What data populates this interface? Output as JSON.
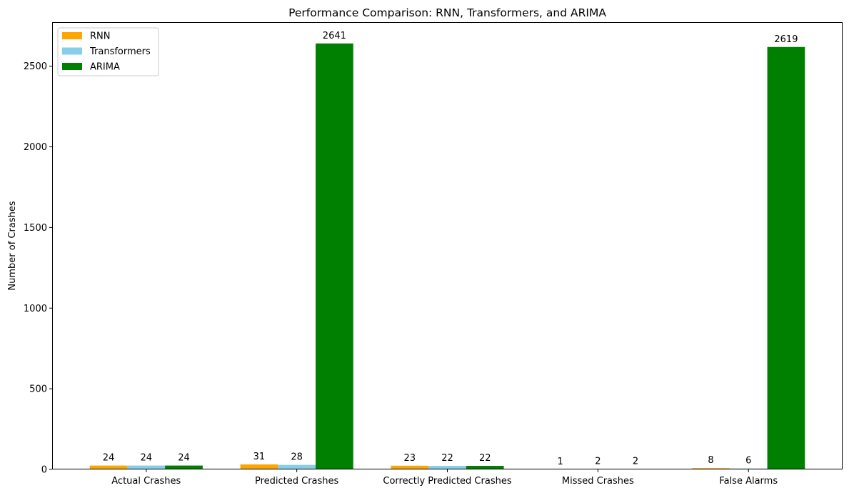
{
  "chart_data": {
    "type": "bar",
    "title": "Performance Comparison: RNN, Transformers, and ARIMA",
    "xlabel": "",
    "ylabel": "Number of Crashes",
    "categories": [
      "Actual Crashes",
      "Predicted Crashes",
      "Correctly Predicted Crashes",
      "Missed Crashes",
      "False Alarms"
    ],
    "series": [
      {
        "name": "RNN",
        "color": "#ffa500",
        "values": [
          24,
          31,
          23,
          1,
          8
        ]
      },
      {
        "name": "Transformers",
        "color": "#87ceeb",
        "values": [
          24,
          28,
          22,
          2,
          6
        ]
      },
      {
        "name": "ARIMA",
        "color": "#008000",
        "values": [
          24,
          2641,
          22,
          2,
          2619
        ]
      }
    ],
    "ylim": [
      0,
      2773
    ],
    "yticks": [
      0,
      500,
      1000,
      1500,
      2000,
      2500
    ],
    "legend_position": "top-left",
    "grid": false
  }
}
